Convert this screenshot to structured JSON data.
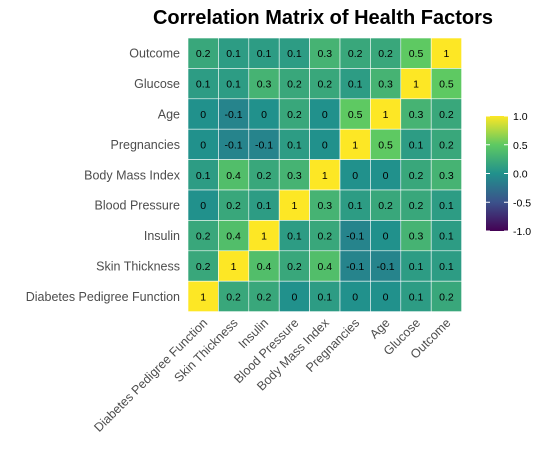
{
  "chart_data": {
    "type": "heatmap",
    "title": "Correlation Matrix of Health Factors",
    "xlabel": "",
    "ylabel": "",
    "x_categories": [
      "Diabetes Pedigree Function",
      "Skin Thickness",
      "Insulin",
      "Blood Pressure",
      "Body Mass Index",
      "Pregnancies",
      "Age",
      "Glucose",
      "Outcome"
    ],
    "y_categories_top_to_bottom": [
      "Outcome",
      "Glucose",
      "Age",
      "Pregnancies",
      "Body Mass Index",
      "Blood Pressure",
      "Insulin",
      "Skin Thickness",
      "Diabetes Pedigree Function"
    ],
    "values": [
      [
        0.2,
        0.1,
        0.1,
        0.1,
        0.3,
        0.2,
        0.2,
        0.5,
        1
      ],
      [
        0.1,
        0.1,
        0.3,
        0.2,
        0.2,
        0.1,
        0.3,
        1,
        0.5
      ],
      [
        0,
        -0.1,
        0,
        0.2,
        0,
        0.5,
        1,
        0.3,
        0.2
      ],
      [
        0,
        -0.1,
        -0.1,
        0.1,
        0,
        1,
        0.5,
        0.1,
        0.2
      ],
      [
        0.1,
        0.4,
        0.2,
        0.3,
        1,
        0,
        0,
        0.2,
        0.3
      ],
      [
        0,
        0.2,
        0.1,
        1,
        0.3,
        0.1,
        0.2,
        0.2,
        0.1
      ],
      [
        0.2,
        0.4,
        1,
        0.1,
        0.2,
        -0.1,
        0,
        0.3,
        0.1
      ],
      [
        0.2,
        1,
        0.4,
        0.2,
        0.4,
        -0.1,
        -0.1,
        0.1,
        0.1
      ],
      [
        1,
        0.2,
        0.2,
        0,
        0.1,
        0,
        0,
        0.1,
        0.2
      ]
    ],
    "color_scale": {
      "name": "viridis",
      "range": [
        -1,
        1
      ],
      "ticks": [
        1.0,
        0.5,
        0.0,
        -0.5,
        -1.0
      ],
      "tick_labels": [
        "1.0",
        "0.5",
        "0.0",
        "-0.5",
        "-1.0"
      ],
      "legend_placement": "right"
    },
    "grid": false
  }
}
